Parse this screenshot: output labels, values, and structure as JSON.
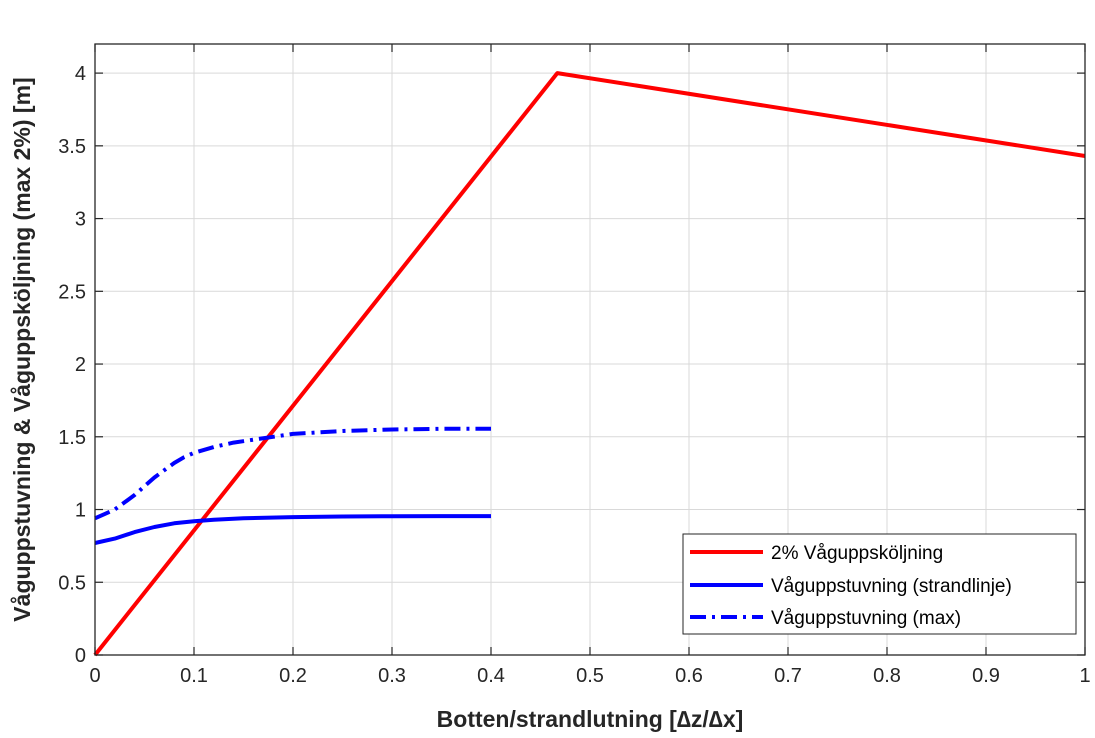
{
  "chart_data": {
    "type": "line",
    "xlabel": "Botten/strandlutning [∆z/∆x]",
    "ylabel": "Våguppstuvning & Våguppsköljning (max 2%) [m]",
    "xlim": [
      0,
      1
    ],
    "ylim": [
      0,
      4.2
    ],
    "xticks": [
      0,
      0.1,
      0.2,
      0.3,
      0.4,
      0.5,
      0.6,
      0.7,
      0.8,
      0.9,
      1
    ],
    "xtick_labels": [
      "0",
      "0.1",
      "0.2",
      "0.3",
      "0.4",
      "0.5",
      "0.6",
      "0.7",
      "0.8",
      "0.9",
      "1"
    ],
    "yticks": [
      0,
      0.5,
      1,
      1.5,
      2,
      2.5,
      3,
      3.5,
      4
    ],
    "ytick_labels": [
      "0",
      "0.5",
      "1",
      "1.5",
      "2",
      "2.5",
      "3",
      "3.5",
      "4"
    ],
    "grid": true,
    "legend_position": "bottom-right",
    "series": [
      {
        "name": "2% Våguppsköljning",
        "color": "#ff0000",
        "style": "solid",
        "x": [
          0,
          0.467,
          1.0
        ],
        "y": [
          0,
          4.0,
          3.43
        ]
      },
      {
        "name": "Våguppstuvning (strandlinje)",
        "color": "#0000ff",
        "style": "solid",
        "x": [
          0,
          0.02,
          0.04,
          0.06,
          0.08,
          0.1,
          0.12,
          0.15,
          0.2,
          0.25,
          0.3,
          0.35,
          0.4
        ],
        "y": [
          0.77,
          0.8,
          0.845,
          0.88,
          0.905,
          0.92,
          0.93,
          0.94,
          0.948,
          0.952,
          0.954,
          0.955,
          0.955
        ]
      },
      {
        "name": "Våguppstuvning (max)",
        "color": "#0000ff",
        "style": "dashdot",
        "x": [
          0,
          0.01,
          0.02,
          0.03,
          0.04,
          0.05,
          0.06,
          0.07,
          0.08,
          0.09,
          0.1,
          0.12,
          0.14,
          0.16,
          0.18,
          0.2,
          0.25,
          0.3,
          0.35,
          0.4
        ],
        "y": [
          0.94,
          0.97,
          1.0,
          1.05,
          1.1,
          1.16,
          1.22,
          1.27,
          1.32,
          1.36,
          1.39,
          1.43,
          1.46,
          1.48,
          1.5,
          1.52,
          1.54,
          1.55,
          1.555,
          1.555
        ]
      }
    ]
  }
}
